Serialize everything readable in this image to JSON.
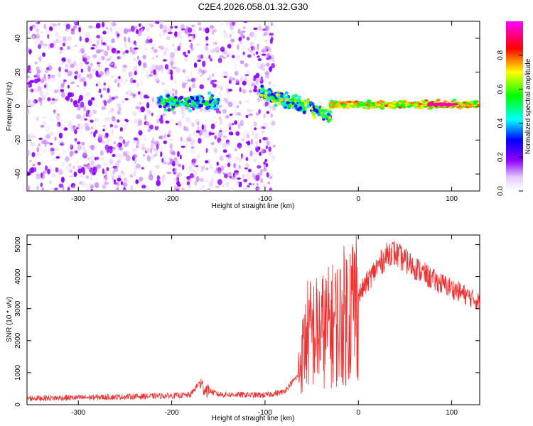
{
  "title": "C2E4.2026.058.01.32.G30",
  "chart_data": [
    {
      "type": "heatmap",
      "name": "spectrogram",
      "xlabel": "Height of straight line (km)",
      "ylabel": "Frequency (Hz)",
      "xlim": [
        -355,
        130
      ],
      "ylim": [
        -50,
        50
      ],
      "x_ticks": [
        -300,
        -200,
        -100,
        0,
        100
      ],
      "y_ticks": [
        -40,
        -20,
        0,
        20,
        40
      ],
      "colorbar": {
        "label": "Normalized spectral amplitude",
        "range": [
          0,
          1
        ],
        "ticks": [
          0.0,
          0.2,
          0.4,
          0.6,
          0.8
        ]
      },
      "regions": [
        {
          "x": [
            -355,
            -90
          ],
          "freq_spread": 50,
          "amplitude": 0.1,
          "description": "broadband noise"
        },
        {
          "x": [
            -215,
            -150
          ],
          "freq_center": 2,
          "freq_spread": 6,
          "amplitude": 0.4
        },
        {
          "x": [
            -105,
            -30
          ],
          "freq_center": "descending 8 to -5",
          "amplitude": 0.5
        },
        {
          "x": [
            -30,
            130
          ],
          "freq_center": 1,
          "freq_spread": 3,
          "amplitude": 0.75
        },
        {
          "x": [
            75,
            105
          ],
          "freq_center": 1,
          "amplitude": 0.95
        }
      ]
    },
    {
      "type": "line",
      "name": "snr",
      "xlabel": "Height of straight line (km)",
      "ylabel": "SNR (10 * v/v)",
      "xlim": [
        -355,
        130
      ],
      "ylim": [
        0,
        5300
      ],
      "x_ticks": [
        -300,
        -200,
        -100,
        0,
        100
      ],
      "y_ticks": [
        0,
        1000,
        2000,
        3000,
        4000,
        5000
      ],
      "color": "#ee3030",
      "profile": [
        {
          "x": -355,
          "y": 200
        },
        {
          "x": -300,
          "y": 220
        },
        {
          "x": -250,
          "y": 250
        },
        {
          "x": -200,
          "y": 280
        },
        {
          "x": -180,
          "y": 300
        },
        {
          "x": -170,
          "y": 700
        },
        {
          "x": -165,
          "y": 500
        },
        {
          "x": -150,
          "y": 320
        },
        {
          "x": -100,
          "y": 300
        },
        {
          "x": -80,
          "y": 400
        },
        {
          "x": -65,
          "y": 900
        },
        {
          "x": -55,
          "y": 2200
        },
        {
          "x": -40,
          "y": 2300
        },
        {
          "x": -20,
          "y": 2600
        },
        {
          "x": 0,
          "y": 3400
        },
        {
          "x": 20,
          "y": 4300
        },
        {
          "x": 35,
          "y": 4800
        },
        {
          "x": 50,
          "y": 4500
        },
        {
          "x": 80,
          "y": 3900
        },
        {
          "x": 110,
          "y": 3500
        },
        {
          "x": 130,
          "y": 3200
        }
      ]
    }
  ]
}
